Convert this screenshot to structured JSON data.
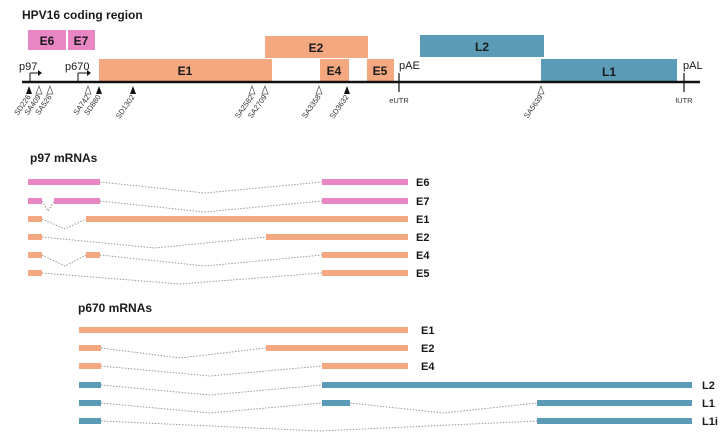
{
  "title": "HPV16 coding region",
  "colors": {
    "e6e7": "#e887c4",
    "early": "#f4a880",
    "late": "#5b9bb5",
    "axis": "#111111",
    "splice": "#9a9a9a"
  },
  "genes": {
    "e6": "E6",
    "e7": "E7",
    "e1": "E1",
    "e2": "E2",
    "e4": "E4",
    "e5": "E5",
    "l2": "L2",
    "l1": "L1"
  },
  "promoters": {
    "p97": "p97",
    "p670": "p670",
    "pae": "pAE",
    "pal": "pAL"
  },
  "sites": {
    "sd226": "SD226",
    "sa409": "SA409",
    "sa526": "SA526",
    "sa742": "SA742",
    "sd880": "SD880",
    "sd1302": "SD1302",
    "sa2582": "SA2582",
    "sa2709": "SA2709",
    "sa3358": "SA3358",
    "sd3632": "SD3632",
    "eutr": "eUTR",
    "sa5639": "SA5639",
    "lutr": "lUTR"
  },
  "sections": {
    "p97": "p97 mRNAs",
    "p670": "p670 mRNAs"
  },
  "mrnas_p97": [
    "E6",
    "E7",
    "E1",
    "E2",
    "E4",
    "E5"
  ],
  "mrnas_p670": [
    "E1",
    "E2",
    "E4",
    "L2",
    "L1",
    "L1i"
  ]
}
